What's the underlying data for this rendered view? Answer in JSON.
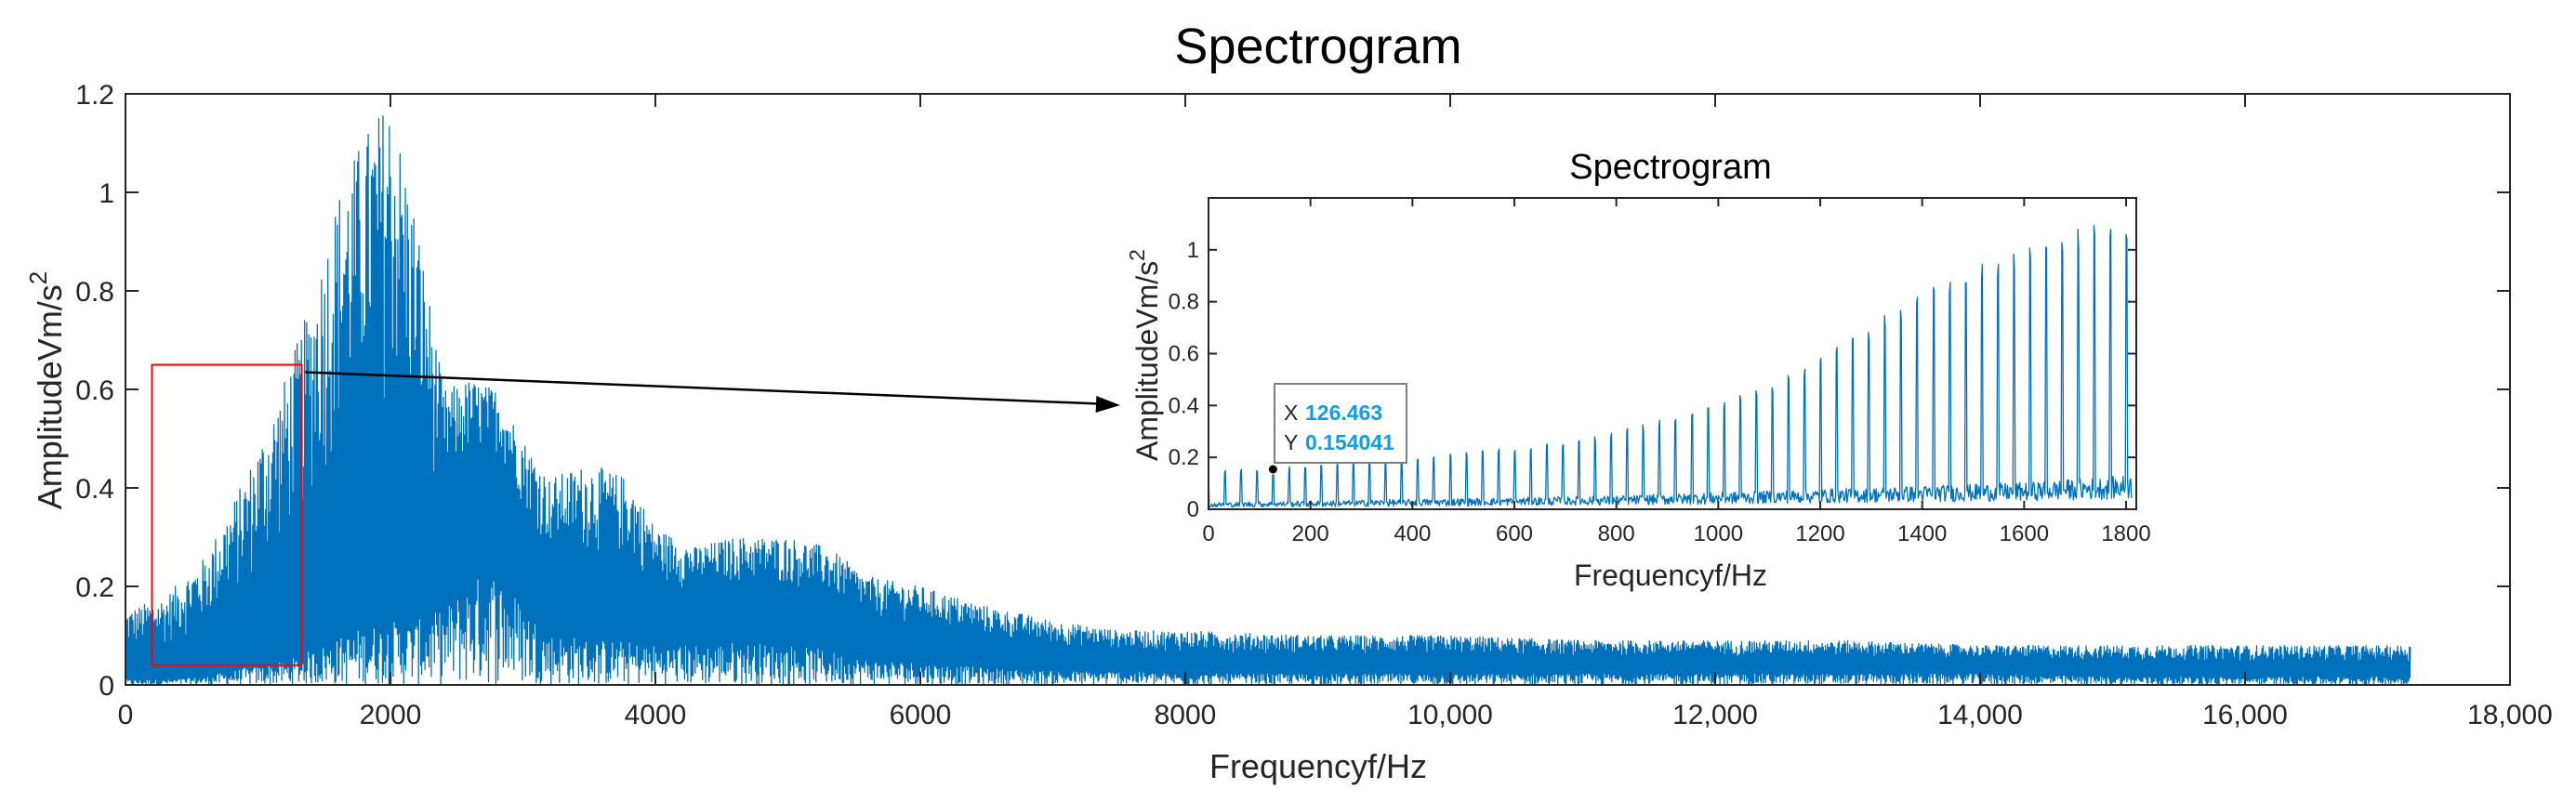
{
  "chart_data": [
    {
      "type": "line",
      "title": "Spectrogram",
      "xlabel": "Frequencyf/Hz",
      "ylabel": "AmplitudeVm/s",
      "ylabel_sup": "2",
      "xlim": [
        0,
        18000
      ],
      "ylim": [
        0,
        1.2
      ],
      "x_ticks": [
        "0",
        "2000",
        "4000",
        "6000",
        "8000",
        "10,000",
        "12,000",
        "14,000",
        "16,000",
        "18,000"
      ],
      "y_ticks": [
        "0",
        "0.2",
        "0.4",
        "0.6",
        "0.8",
        "1",
        "1.2"
      ],
      "grid": false,
      "line_color": "#0072BD",
      "envelope": {
        "x": [
          0,
          300,
          600,
          900,
          1200,
          1400,
          1600,
          1800,
          2000,
          2200,
          2400,
          2600,
          2800,
          3000,
          3200,
          3500,
          3800,
          4000,
          4300,
          4600,
          5000,
          5300,
          5600,
          6000,
          6500,
          7000,
          7500,
          8000,
          9000,
          10000,
          11000,
          12000,
          13000,
          14000,
          15000,
          16000,
          17250
        ],
        "peak": [
          0.15,
          0.18,
          0.26,
          0.42,
          0.62,
          0.78,
          1.0,
          1.12,
          1.2,
          0.95,
          0.6,
          0.62,
          0.6,
          0.5,
          0.42,
          0.45,
          0.42,
          0.32,
          0.28,
          0.3,
          0.3,
          0.28,
          0.22,
          0.2,
          0.16,
          0.13,
          0.11,
          0.11,
          0.1,
          0.1,
          0.09,
          0.09,
          0.09,
          0.08,
          0.08,
          0.08,
          0.08
        ],
        "floor": [
          0.02,
          0.02,
          0.03,
          0.06,
          0.08,
          0.12,
          0.16,
          0.2,
          0.22,
          0.22,
          0.26,
          0.36,
          0.4,
          0.28,
          0.18,
          0.16,
          0.15,
          0.14,
          0.14,
          0.15,
          0.14,
          0.12,
          0.09,
          0.08,
          0.06,
          0.05,
          0.05,
          0.04,
          0.04,
          0.04,
          0.04,
          0.04,
          0.04,
          0.04,
          0.03,
          0.03,
          0.03
        ]
      },
      "zoom_region": {
        "x": [
          200,
          1330
        ],
        "y": [
          0.04,
          0.65
        ],
        "color": "#FF0000"
      }
    },
    {
      "type": "line",
      "title": "Spectrogram",
      "xlabel": "Frequencyf/Hz",
      "ylabel": "AmplitudeVm/s",
      "ylabel_sup": "2",
      "xlim": [
        0,
        1820
      ],
      "ylim": [
        0,
        1.2
      ],
      "x_ticks": [
        "0",
        "200",
        "400",
        "600",
        "800",
        "1000",
        "1200",
        "1400",
        "1600",
        "1800"
      ],
      "y_ticks": [
        "0",
        "0.2",
        "0.4",
        "0.6",
        "0.8",
        "1"
      ],
      "grid": false,
      "line_color": "#0072BD",
      "harmonic_spacing": 31.6,
      "peaks": {
        "x": [
          0,
          200,
          400,
          600,
          800,
          1000,
          1100,
          1200,
          1300,
          1400,
          1500,
          1600,
          1700,
          1790
        ],
        "y": [
          0.15,
          0.17,
          0.2,
          0.24,
          0.3,
          0.42,
          0.5,
          0.6,
          0.72,
          0.85,
          0.95,
          1.0,
          1.08,
          1.15
        ]
      },
      "floor": {
        "x": [
          0,
          400,
          800,
          1200,
          1600,
          1800
        ],
        "y": [
          0.02,
          0.03,
          0.04,
          0.06,
          0.08,
          0.1
        ]
      },
      "datatip": {
        "x_label": "X",
        "x_value": "126.463",
        "y_label": "Y",
        "y_value": "0.154041"
      }
    }
  ]
}
